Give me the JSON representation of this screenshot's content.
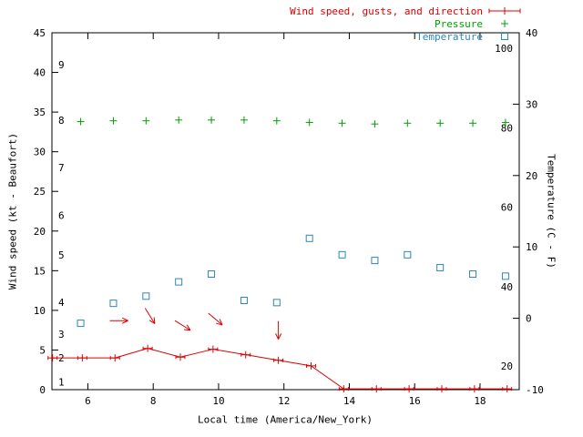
{
  "chart_data": {
    "type": "line",
    "grid": false,
    "legend_position": "top-right",
    "axes": {
      "x": {
        "label": "Local time (America/New_York)",
        "min": 4.9,
        "max": 19.2,
        "ticks": [
          6,
          8,
          10,
          12,
          14,
          16,
          18
        ]
      },
      "y_left": {
        "label": "Wind speed (kt - Beaufort)",
        "min": 0,
        "max": 45,
        "ticks": [
          0,
          5,
          10,
          15,
          20,
          25,
          30,
          35,
          40,
          45
        ],
        "beaufort_labels": [
          "1",
          "2",
          "3",
          "4",
          "5",
          "6",
          "7",
          "8",
          "9"
        ],
        "beaufort_kt": [
          1,
          4,
          7,
          11,
          17,
          22,
          28,
          34,
          41
        ]
      },
      "y_right": {
        "label": "Temperature (C - F)",
        "min": -10,
        "max": 40,
        "ticks": [
          -10,
          0,
          10,
          20,
          30,
          40
        ],
        "fahrenheit_labels": [
          "20",
          "40",
          "60",
          "80",
          "100"
        ],
        "fahrenheit_c": [
          -6.7,
          4.4,
          15.6,
          26.7,
          37.8
        ]
      }
    },
    "series": {
      "wind": {
        "name": "Wind speed, gusts, and direction",
        "color": "#dd0000",
        "marker": "errorbar-plus",
        "x": [
          4.92,
          5.83,
          6.83,
          7.83,
          8.83,
          9.83,
          10.83,
          11.83,
          12.83,
          13.83,
          14.83,
          15.83,
          16.83,
          17.83,
          18.83
        ],
        "y_kt": [
          4.0,
          4.0,
          4.0,
          5.2,
          4.1,
          5.1,
          4.4,
          3.7,
          3.0,
          0.1,
          0.1,
          0.1,
          0.1,
          0.1,
          0.1
        ]
      },
      "pressure": {
        "name": "Pressure",
        "color": "#00a000",
        "marker": "plus",
        "axis_note": "values as plotted against left axis scale",
        "x": [
          5.78,
          6.78,
          7.78,
          8.78,
          9.78,
          10.78,
          11.78,
          12.78,
          13.78,
          14.78,
          15.78,
          16.78,
          17.78,
          18.78
        ],
        "y_left_axis": [
          33.8,
          33.9,
          33.9,
          34.0,
          34.0,
          34.0,
          33.9,
          33.7,
          33.6,
          33.5,
          33.6,
          33.6,
          33.6,
          33.7
        ]
      },
      "temperature": {
        "name": "Temperature",
        "color": "#2f86b8",
        "marker": "open-square",
        "x": [
          5.78,
          6.78,
          7.78,
          8.78,
          9.78,
          10.78,
          11.78,
          12.78,
          13.78,
          14.78,
          15.78,
          16.78,
          17.78,
          18.78
        ],
        "y_c": [
          -0.7,
          2.1,
          3.1,
          5.1,
          6.2,
          2.5,
          2.2,
          11.2,
          8.9,
          8.1,
          8.9,
          7.1,
          6.2,
          5.9
        ]
      },
      "wind_direction_arrows": {
        "color": "#dd0000",
        "arrows": [
          {
            "x": 6.95,
            "y_kt": 8.7,
            "angle_deg": 0
          },
          {
            "x": 7.9,
            "y_kt": 9.3,
            "angle_deg": 58
          },
          {
            "x": 8.9,
            "y_kt": 8.1,
            "angle_deg": 32
          },
          {
            "x": 9.9,
            "y_kt": 8.9,
            "angle_deg": 40
          },
          {
            "x": 11.83,
            "y_kt": 7.5,
            "angle_deg": 90
          }
        ]
      }
    }
  }
}
